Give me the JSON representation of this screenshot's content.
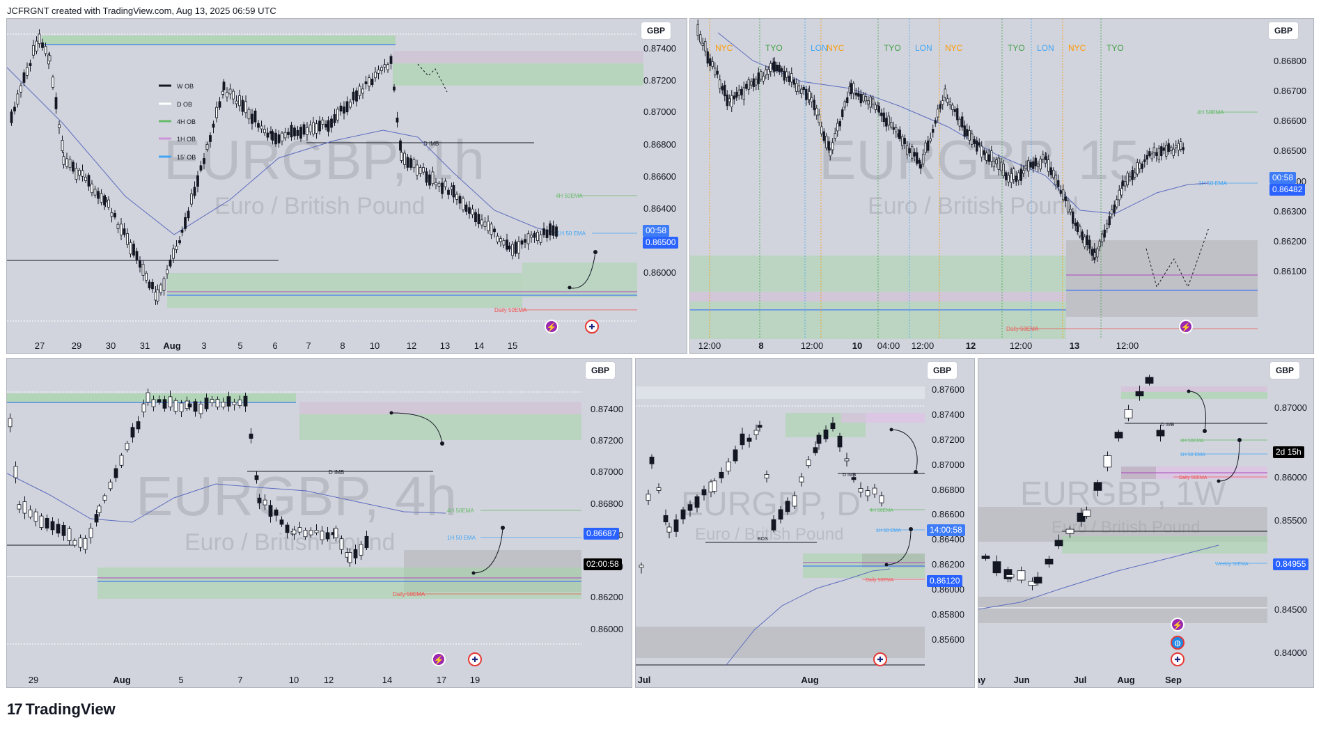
{
  "header": {
    "text": "JCFRGNT created with TradingView.com, Aug 13, 2025 06:59 UTC"
  },
  "footer": {
    "logo_mark": "17",
    "logo_text": "TradingView"
  },
  "colors": {
    "panel_bg": "#d1d4dc",
    "ob_green": "#a5d6a7",
    "ob_pink": "#e1bee7",
    "ob_grey": "#9e9e9e",
    "ema_blue": "#5c6bc0",
    "price_tag_blue": "#2962ff",
    "daily_ema_red": "#ef5350"
  },
  "panels": {
    "p1": {
      "currency": "GBP",
      "watermark": "EURGBP, 1h",
      "watermark_sub": "Euro / British Pound",
      "y_ticks": [
        "0.87400",
        "0.87200",
        "0.87000",
        "0.86800",
        "0.86600",
        "0.86400",
        "0.86200",
        "0.86000"
      ],
      "x_ticks": [
        {
          "t": "27",
          "b": false
        },
        {
          "t": "29",
          "b": false
        },
        {
          "t": "30",
          "b": false
        },
        {
          "t": "31",
          "b": false
        },
        {
          "t": "Aug",
          "b": true
        },
        {
          "t": "3",
          "b": false
        },
        {
          "t": "5",
          "b": false
        },
        {
          "t": "6",
          "b": false
        },
        {
          "t": "7",
          "b": false
        },
        {
          "t": "8",
          "b": false
        },
        {
          "t": "10",
          "b": false
        },
        {
          "t": "12",
          "b": false
        },
        {
          "t": "13",
          "b": false
        },
        {
          "t": "14",
          "b": false
        },
        {
          "t": "15",
          "b": false
        }
      ],
      "legend": [
        "W OB",
        "D OB",
        "4H OB",
        "1H OB",
        "15' OB"
      ],
      "labels": {
        "dimb": "D IMB",
        "ema4h": "4H 50EMA",
        "ema1h": "1H 50 EMA",
        "daily": "Daily 50EMA"
      },
      "tags": {
        "countdown": "00:58",
        "price": "0.86500"
      }
    },
    "p2": {
      "currency": "GBP",
      "watermark": "EURGBP, 15",
      "watermark_sub": "Euro / British Pound",
      "sessions": [
        "NYC",
        "TYO",
        "LON",
        "NYC",
        "TYO",
        "LON",
        "NYC",
        "TYO",
        "LON",
        "NYC",
        "TYO"
      ],
      "y_ticks": [
        "0.86800",
        "0.86700",
        "0.86600",
        "0.86500",
        "0.86400",
        "0.86300",
        "0.86200",
        "0.86100"
      ],
      "x_ticks": [
        {
          "t": "12:00",
          "b": false
        },
        {
          "t": "8",
          "b": true
        },
        {
          "t": "12:00",
          "b": false
        },
        {
          "t": "10",
          "b": true
        },
        {
          "t": "04:00",
          "b": false
        },
        {
          "t": "12:00",
          "b": false
        },
        {
          "t": "12",
          "b": true
        },
        {
          "t": "12:00",
          "b": false
        },
        {
          "t": "13",
          "b": true
        },
        {
          "t": "12:00",
          "b": false
        }
      ],
      "labels": {
        "ema4h": "4H 50EMA",
        "ema1h": "1H 50 EMA",
        "daily": "Daily 50EMA"
      },
      "tags": {
        "countdown": "00:58",
        "price": "0.86482"
      }
    },
    "p3": {
      "currency": "GBP",
      "watermark": "EURGBP, 4h",
      "watermark_sub": "Euro / British Pound",
      "y_ticks": [
        "0.87400",
        "0.87200",
        "0.87000",
        "0.86800",
        "0.86600",
        "0.86400",
        "0.86200",
        "0.86000"
      ],
      "x_ticks": [
        {
          "t": "29",
          "b": false
        },
        {
          "t": "Aug",
          "b": true
        },
        {
          "t": "5",
          "b": false
        },
        {
          "t": "7",
          "b": false
        },
        {
          "t": "10",
          "b": false
        },
        {
          "t": "12",
          "b": false
        },
        {
          "t": "14",
          "b": false
        },
        {
          "t": "17",
          "b": false
        },
        {
          "t": "19",
          "b": false
        }
      ],
      "labels": {
        "dimb": "D IMB",
        "ema4h": "4H 50EMA",
        "ema1h": "1H 50 EMA",
        "daily": "Daily 50EMA"
      },
      "tags": {
        "price": "0.86687",
        "countdown": "02:00:58"
      }
    },
    "p4": {
      "currency": "GBP",
      "watermark": "EURGBP, D",
      "watermark_sub": "Euro / British Pound",
      "y_ticks": [
        "0.87600",
        "0.87400",
        "0.87200",
        "0.87000",
        "0.86800",
        "0.86600",
        "0.86400",
        "0.86200",
        "0.86000",
        "0.85800",
        "0.85600"
      ],
      "x_ticks": [
        {
          "t": "Jul",
          "b": true
        },
        {
          "t": "Aug",
          "b": true
        }
      ],
      "labels": {
        "dimb": "D IMB",
        "bos": "BOS",
        "ema4h": "4H 50EMA",
        "ema1h": "1H 50 EMA",
        "daily": "Daily 50EMA"
      },
      "tags": {
        "countdown": "14:00:58",
        "price": "0.86120"
      }
    },
    "p5": {
      "currency": "GBP",
      "watermark": "EURGBP, 1W",
      "watermark_sub": "Euro / British Pound",
      "y_ticks": [
        "0.87000",
        "0.86000",
        "0.85500",
        "0.85000",
        "0.84500",
        "0.84000"
      ],
      "x_ticks": [
        {
          "t": "ay",
          "b": true
        },
        {
          "t": "Jun",
          "b": true
        },
        {
          "t": "Jul",
          "b": true
        },
        {
          "t": "Aug",
          "b": true
        },
        {
          "t": "Sep",
          "b": true
        }
      ],
      "labels": {
        "dimb": "D IMB",
        "ema4h": "4H 50EMA",
        "ema1h": "1H 50 EMA",
        "daily": "Daily 50EMA",
        "weekly": "Weekly 50EMA"
      },
      "tags": {
        "countdown": "2d 15h",
        "price": "0.84955"
      }
    }
  }
}
